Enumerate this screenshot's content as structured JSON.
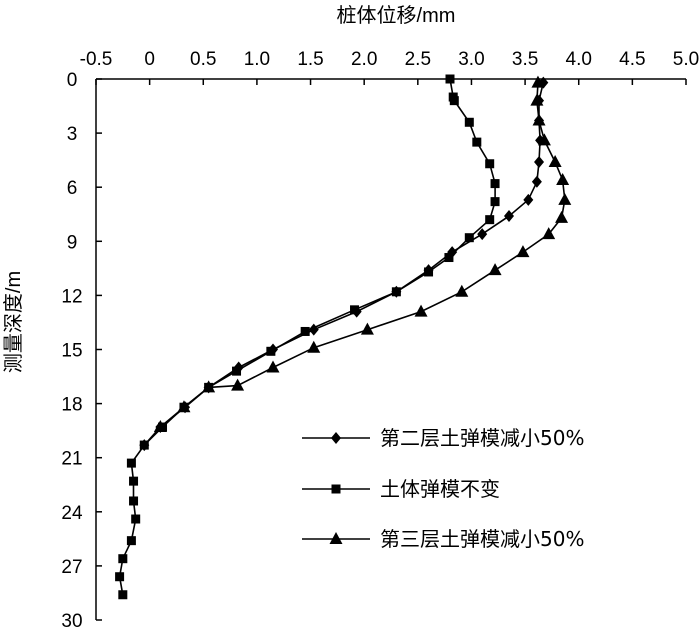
{
  "chart_data": {
    "type": "line",
    "x_axis_position": "top",
    "y_axis_inverted": true,
    "xlabel": "桩体位移/mm",
    "ylabel": "测量深度/m",
    "xlim": [
      -0.5,
      5.0
    ],
    "ylim": [
      0,
      30
    ],
    "x_ticks": [
      "-0.5",
      "0",
      "0.5",
      "1.0",
      "1.5",
      "2.0",
      "2.5",
      "3.0",
      "3.5",
      "4.0",
      "4.5",
      "5.0"
    ],
    "y_ticks": [
      "0",
      "3",
      "6",
      "9",
      "12",
      "15",
      "18",
      "21",
      "24",
      "27",
      "30"
    ],
    "grid": false,
    "legend_position": "lower-right",
    "series": [
      {
        "name": "第二层土弹模减小50%",
        "marker": "diamond",
        "points": [
          [
            3.67,
            0.2
          ],
          [
            3.63,
            1.2
          ],
          [
            3.63,
            2.3
          ],
          [
            3.64,
            3.4
          ],
          [
            3.63,
            4.6
          ],
          [
            3.61,
            5.7
          ],
          [
            3.53,
            6.7
          ],
          [
            3.35,
            7.6
          ],
          [
            3.1,
            8.6
          ],
          [
            2.82,
            9.6
          ],
          [
            2.6,
            10.6
          ],
          [
            2.3,
            11.8
          ],
          [
            1.93,
            12.9
          ],
          [
            1.53,
            13.9
          ],
          [
            1.15,
            15.0
          ],
          [
            0.83,
            16.0
          ],
          [
            0.55,
            17.1
          ],
          [
            0.33,
            18.2
          ],
          [
            0.1,
            19.3
          ],
          [
            -0.05,
            20.3
          ]
        ]
      },
      {
        "name": "土体弹模不变",
        "marker": "square",
        "points": [
          [
            2.8,
            0.0
          ],
          [
            2.83,
            1.0
          ],
          [
            2.84,
            1.2
          ],
          [
            2.98,
            2.4
          ],
          [
            3.05,
            3.5
          ],
          [
            3.17,
            4.7
          ],
          [
            3.22,
            5.8
          ],
          [
            3.22,
            6.8
          ],
          [
            3.17,
            7.8
          ],
          [
            2.98,
            8.8
          ],
          [
            2.79,
            9.9
          ],
          [
            2.6,
            10.7
          ],
          [
            2.3,
            11.8
          ],
          [
            1.91,
            12.8
          ],
          [
            1.45,
            14.0
          ],
          [
            1.13,
            15.1
          ],
          [
            0.81,
            16.2
          ],
          [
            0.55,
            17.1
          ],
          [
            0.32,
            18.2
          ],
          [
            0.12,
            19.3
          ],
          [
            -0.05,
            20.3
          ],
          [
            -0.17,
            21.3
          ],
          [
            -0.15,
            22.3
          ],
          [
            -0.15,
            23.4
          ],
          [
            -0.13,
            24.4
          ],
          [
            -0.17,
            25.6
          ],
          [
            -0.25,
            26.6
          ],
          [
            -0.28,
            27.6
          ],
          [
            -0.25,
            28.6
          ]
        ]
      },
      {
        "name": "第三层土弹模减小50%",
        "marker": "triangle",
        "points": [
          [
            3.62,
            0.2
          ],
          [
            3.61,
            1.2
          ],
          [
            3.63,
            2.3
          ],
          [
            3.68,
            3.4
          ],
          [
            3.78,
            4.6
          ],
          [
            3.85,
            5.6
          ],
          [
            3.87,
            6.7
          ],
          [
            3.84,
            7.7
          ],
          [
            3.72,
            8.6
          ],
          [
            3.48,
            9.6
          ],
          [
            3.22,
            10.6
          ],
          [
            2.91,
            11.8
          ],
          [
            2.53,
            12.9
          ],
          [
            2.03,
            13.9
          ],
          [
            1.53,
            14.9
          ],
          [
            1.15,
            16.0
          ],
          [
            0.82,
            17.0
          ],
          [
            0.55,
            17.1
          ],
          [
            0.32,
            18.2
          ],
          [
            0.1,
            19.3
          ]
        ]
      }
    ]
  }
}
